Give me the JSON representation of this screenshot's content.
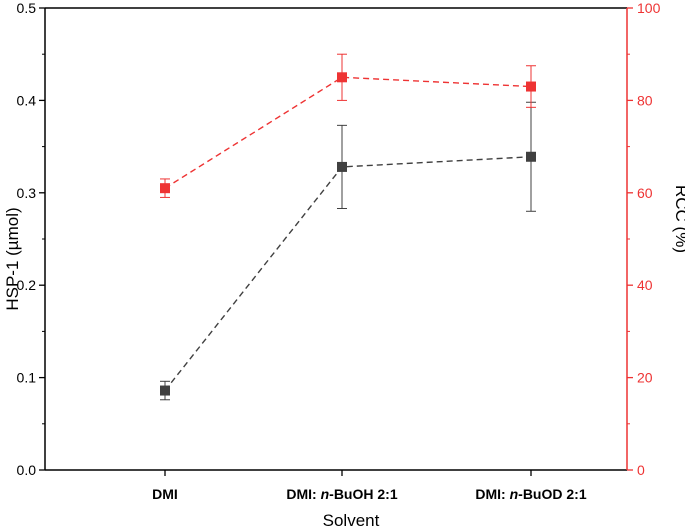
{
  "chart_data": {
    "type": "line",
    "xlabel": "Solvent",
    "ylabel": "HSP-1 (µmol)",
    "y2label": "RCC (%)",
    "categories": [
      {
        "prefix": "DMI",
        "italic": "",
        "suffix": ""
      },
      {
        "prefix": "DMI: ",
        "italic": "n",
        "suffix": "-BuOH 2:1"
      },
      {
        "prefix": "DMI: ",
        "italic": "n",
        "suffix": "-BuOD 2:1"
      }
    ],
    "ylim": [
      0,
      0.5
    ],
    "y2lim": [
      0,
      100
    ],
    "yticks": [
      "0.0",
      "0.1",
      "0.2",
      "0.3",
      "0.4",
      "0.5"
    ],
    "y2ticks": [
      "0",
      "20",
      "40",
      "60",
      "80",
      "100"
    ],
    "series": [
      {
        "axis": "left",
        "color": "#404040",
        "marker": "square",
        "line_style": "dashed",
        "values": [
          0.086,
          0.328,
          0.339
        ],
        "errors": [
          0.01,
          0.045,
          0.059
        ]
      },
      {
        "axis": "right",
        "color": "#ee3333",
        "marker": "square",
        "line_style": "dashed",
        "values": [
          61,
          85,
          83
        ],
        "errors": [
          2,
          5,
          4.5
        ]
      }
    ],
    "left_axis_color": "#000000",
    "right_axis_color": "#ee3333",
    "grid": false
  }
}
